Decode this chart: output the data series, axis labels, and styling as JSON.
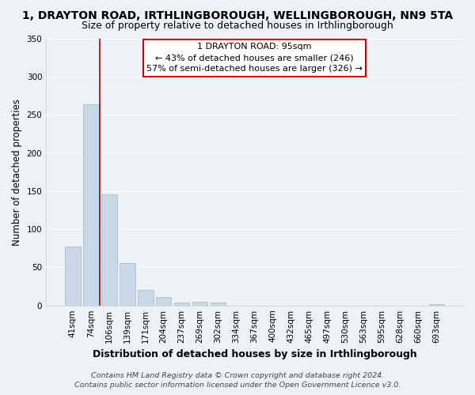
{
  "title": "1, DRAYTON ROAD, IRTHLINGBOROUGH, WELLINGBOROUGH, NN9 5TA",
  "subtitle": "Size of property relative to detached houses in Irthlingborough",
  "xlabel": "Distribution of detached houses by size in Irthlingborough",
  "ylabel": "Number of detached properties",
  "bar_color": "#c8d8e8",
  "bar_edge_color": "#a8bece",
  "background_color": "#eef2f7",
  "grid_color": "#ffffff",
  "categories": [
    "41sqm",
    "74sqm",
    "106sqm",
    "139sqm",
    "171sqm",
    "204sqm",
    "237sqm",
    "269sqm",
    "302sqm",
    "334sqm",
    "367sqm",
    "400sqm",
    "432sqm",
    "465sqm",
    "497sqm",
    "530sqm",
    "563sqm",
    "595sqm",
    "628sqm",
    "660sqm",
    "693sqm"
  ],
  "values": [
    77,
    264,
    146,
    56,
    20,
    11,
    4,
    5,
    4,
    0,
    0,
    0,
    0,
    0,
    0,
    0,
    0,
    0,
    0,
    0,
    2
  ],
  "vline_color": "#aa0000",
  "annotation_title": "1 DRAYTON ROAD: 95sqm",
  "annotation_line1": "← 43% of detached houses are smaller (246)",
  "annotation_line2": "57% of semi-detached houses are larger (326) →",
  "annotation_box_color": "#ffffff",
  "annotation_box_edge_color": "#cc0000",
  "ylim": [
    0,
    350
  ],
  "yticks": [
    0,
    50,
    100,
    150,
    200,
    250,
    300,
    350
  ],
  "footer1": "Contains HM Land Registry data © Crown copyright and database right 2024.",
  "footer2": "Contains public sector information licensed under the Open Government Licence v3.0.",
  "title_fontsize": 10,
  "subtitle_fontsize": 9,
  "xlabel_fontsize": 9,
  "ylabel_fontsize": 8.5,
  "tick_fontsize": 7.5,
  "annotation_fontsize": 8,
  "footer_fontsize": 6.8
}
